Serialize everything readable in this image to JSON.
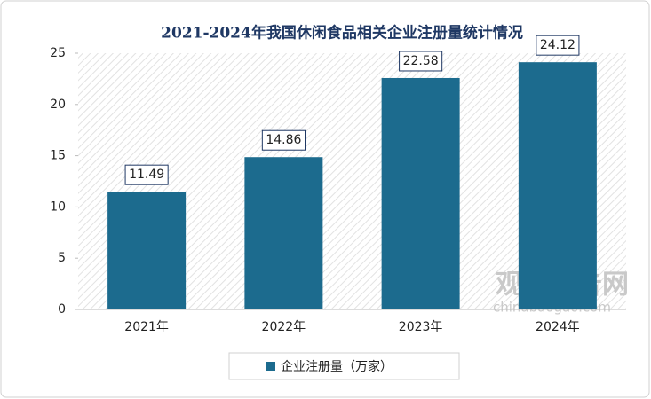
{
  "chart_data": {
    "type": "bar",
    "title": "2021-2024年我国休闲食品相关企业注册量统计情况",
    "categories": [
      "2021年",
      "2022年",
      "2023年",
      "2024年"
    ],
    "series": [
      {
        "name": "企业注册量（万家）",
        "color": "#1c6b8e",
        "values": [
          11.49,
          14.86,
          22.58,
          24.12
        ]
      }
    ],
    "ylim": [
      0,
      25
    ],
    "yticks": [
      0,
      5,
      10,
      15,
      20,
      25
    ],
    "legend": "bottom",
    "watermark": {
      "brand": "观研报告网",
      "url": "chinabaogao.com"
    }
  }
}
